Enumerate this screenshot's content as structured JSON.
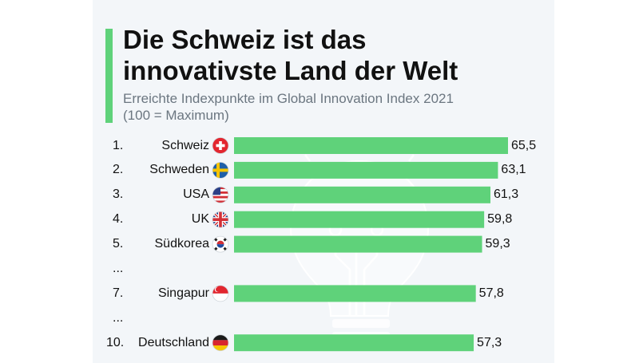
{
  "title_line1": "Die Schweiz ist das",
  "title_line2": "innovativste Land der Welt",
  "subtitle_line1": "Erreichte Indexpunkte im Global Innovation Index 2021",
  "subtitle_line2": "(100 = Maximum)",
  "colors": {
    "bar": "#5fd27a",
    "accent": "#5fd27a",
    "panel": "#f3f6f9"
  },
  "chart_data": {
    "type": "bar",
    "orientation": "horizontal",
    "rows": [
      {
        "rank": "1.",
        "country": "Schweiz",
        "flag": "flag-switzerland",
        "value": 65.5,
        "label": "65,5"
      },
      {
        "rank": "2.",
        "country": "Schweden",
        "flag": "flag-sweden",
        "value": 63.1,
        "label": "63,1"
      },
      {
        "rank": "3.",
        "country": "USA",
        "flag": "flag-usa",
        "value": 61.3,
        "label": "61,3"
      },
      {
        "rank": "4.",
        "country": "UK",
        "flag": "flag-uk",
        "value": 59.8,
        "label": "59,8"
      },
      {
        "rank": "5.",
        "country": "Südkorea",
        "flag": "flag-south-korea",
        "value": 59.3,
        "label": "59,3"
      },
      {
        "ellipsis": "..."
      },
      {
        "rank": "7.",
        "country": "Singapur",
        "flag": "flag-singapore",
        "value": 57.8,
        "label": "57,8"
      },
      {
        "ellipsis": "..."
      },
      {
        "rank": "10.",
        "country": "Deutschland",
        "flag": "flag-germany",
        "value": 57.3,
        "label": "57,3"
      }
    ]
  }
}
